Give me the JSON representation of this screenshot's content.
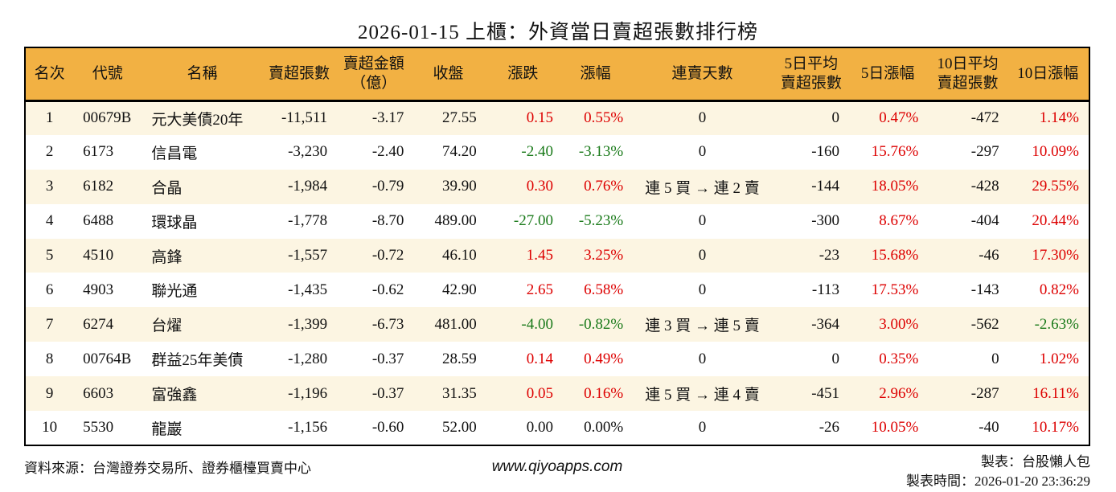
{
  "title": "2026-01-15 上櫃：外資當日賣超張數排行榜",
  "table": {
    "columns": [
      {
        "key": "rank",
        "label": "名次"
      },
      {
        "key": "code",
        "label": "代號"
      },
      {
        "key": "name",
        "label": "名稱"
      },
      {
        "key": "sell_volume",
        "label": "賣超張數"
      },
      {
        "key": "sell_amount",
        "label": "賣超金額\n（億）"
      },
      {
        "key": "close",
        "label": "收盤"
      },
      {
        "key": "change",
        "label": "漲跌"
      },
      {
        "key": "change_pct",
        "label": "漲幅"
      },
      {
        "key": "consecutive",
        "label": "連賣天數"
      },
      {
        "key": "avg5",
        "label": "5日平均\n賣超張數"
      },
      {
        "key": "pct5",
        "label": "5日漲幅"
      },
      {
        "key": "avg10",
        "label": "10日平均\n賣超張數"
      },
      {
        "key": "pct10",
        "label": "10日漲幅"
      }
    ],
    "rows": [
      {
        "rank": "1",
        "code": "00679B",
        "name": "元大美債20年",
        "sell_volume": "-11,511",
        "sell_amount": "-3.17",
        "close": "27.55",
        "change": "0.15",
        "change_c": "red",
        "change_pct": "0.55%",
        "change_pct_c": "red",
        "consecutive": "0",
        "avg5": "0",
        "pct5": "0.47%",
        "pct5_c": "red",
        "avg10": "-472",
        "pct10": "1.14%",
        "pct10_c": "red"
      },
      {
        "rank": "2",
        "code": "6173",
        "name": "信昌電",
        "sell_volume": "-3,230",
        "sell_amount": "-2.40",
        "close": "74.20",
        "change": "-2.40",
        "change_c": "green",
        "change_pct": "-3.13%",
        "change_pct_c": "green",
        "consecutive": "0",
        "avg5": "-160",
        "pct5": "15.76%",
        "pct5_c": "red",
        "avg10": "-297",
        "pct10": "10.09%",
        "pct10_c": "red"
      },
      {
        "rank": "3",
        "code": "6182",
        "name": "合晶",
        "sell_volume": "-1,984",
        "sell_amount": "-0.79",
        "close": "39.90",
        "change": "0.30",
        "change_c": "red",
        "change_pct": "0.76%",
        "change_pct_c": "red",
        "consecutive": "連 5 買 → 連 2 賣",
        "avg5": "-144",
        "pct5": "18.05%",
        "pct5_c": "red",
        "avg10": "-428",
        "pct10": "29.55%",
        "pct10_c": "red"
      },
      {
        "rank": "4",
        "code": "6488",
        "name": "環球晶",
        "sell_volume": "-1,778",
        "sell_amount": "-8.70",
        "close": "489.00",
        "change": "-27.00",
        "change_c": "green",
        "change_pct": "-5.23%",
        "change_pct_c": "green",
        "consecutive": "0",
        "avg5": "-300",
        "pct5": "8.67%",
        "pct5_c": "red",
        "avg10": "-404",
        "pct10": "20.44%",
        "pct10_c": "red"
      },
      {
        "rank": "5",
        "code": "4510",
        "name": "高鋒",
        "sell_volume": "-1,557",
        "sell_amount": "-0.72",
        "close": "46.10",
        "change": "1.45",
        "change_c": "red",
        "change_pct": "3.25%",
        "change_pct_c": "red",
        "consecutive": "0",
        "avg5": "-23",
        "pct5": "15.68%",
        "pct5_c": "red",
        "avg10": "-46",
        "pct10": "17.30%",
        "pct10_c": "red"
      },
      {
        "rank": "6",
        "code": "4903",
        "name": "聯光通",
        "sell_volume": "-1,435",
        "sell_amount": "-0.62",
        "close": "42.90",
        "change": "2.65",
        "change_c": "red",
        "change_pct": "6.58%",
        "change_pct_c": "red",
        "consecutive": "0",
        "avg5": "-113",
        "pct5": "17.53%",
        "pct5_c": "red",
        "avg10": "-143",
        "pct10": "0.82%",
        "pct10_c": "red"
      },
      {
        "rank": "7",
        "code": "6274",
        "name": "台燿",
        "sell_volume": "-1,399",
        "sell_amount": "-6.73",
        "close": "481.00",
        "change": "-4.00",
        "change_c": "green",
        "change_pct": "-0.82%",
        "change_pct_c": "green",
        "consecutive": "連 3 買 → 連 5 賣",
        "avg5": "-364",
        "pct5": "3.00%",
        "pct5_c": "red",
        "avg10": "-562",
        "pct10": "-2.63%",
        "pct10_c": "green"
      },
      {
        "rank": "8",
        "code": "00764B",
        "name": "群益25年美債",
        "sell_volume": "-1,280",
        "sell_amount": "-0.37",
        "close": "28.59",
        "change": "0.14",
        "change_c": "red",
        "change_pct": "0.49%",
        "change_pct_c": "red",
        "consecutive": "0",
        "avg5": "0",
        "pct5": "0.35%",
        "pct5_c": "red",
        "avg10": "0",
        "pct10": "1.02%",
        "pct10_c": "red"
      },
      {
        "rank": "9",
        "code": "6603",
        "name": "富強鑫",
        "sell_volume": "-1,196",
        "sell_amount": "-0.37",
        "close": "31.35",
        "change": "0.05",
        "change_c": "red",
        "change_pct": "0.16%",
        "change_pct_c": "red",
        "consecutive": "連 5 買 → 連 4 賣",
        "avg5": "-451",
        "pct5": "2.96%",
        "pct5_c": "red",
        "avg10": "-287",
        "pct10": "16.11%",
        "pct10_c": "red"
      },
      {
        "rank": "10",
        "code": "5530",
        "name": "龍巖",
        "sell_volume": "-1,156",
        "sell_amount": "-0.60",
        "close": "52.00",
        "change": "0.00",
        "change_pct": "0.00%",
        "consecutive": "0",
        "avg5": "-26",
        "pct5": "10.05%",
        "pct5_c": "red",
        "avg10": "-40",
        "pct10": "10.17%",
        "pct10_c": "red"
      }
    ]
  },
  "footer": {
    "source": "資料來源：台灣證券交易所、證券櫃檯買賣中心",
    "site": "www.qiyoapps.com",
    "made_by": "製表：台股懶人包",
    "made_time": "製表時間：2026-01-20 23:36:29"
  },
  "colors": {
    "header_bg": "#f2b143",
    "row_alt_bg": "#fcf5e2",
    "up_red": "#dd0000",
    "down_green": "#1a7a1a",
    "border": "#000000"
  }
}
